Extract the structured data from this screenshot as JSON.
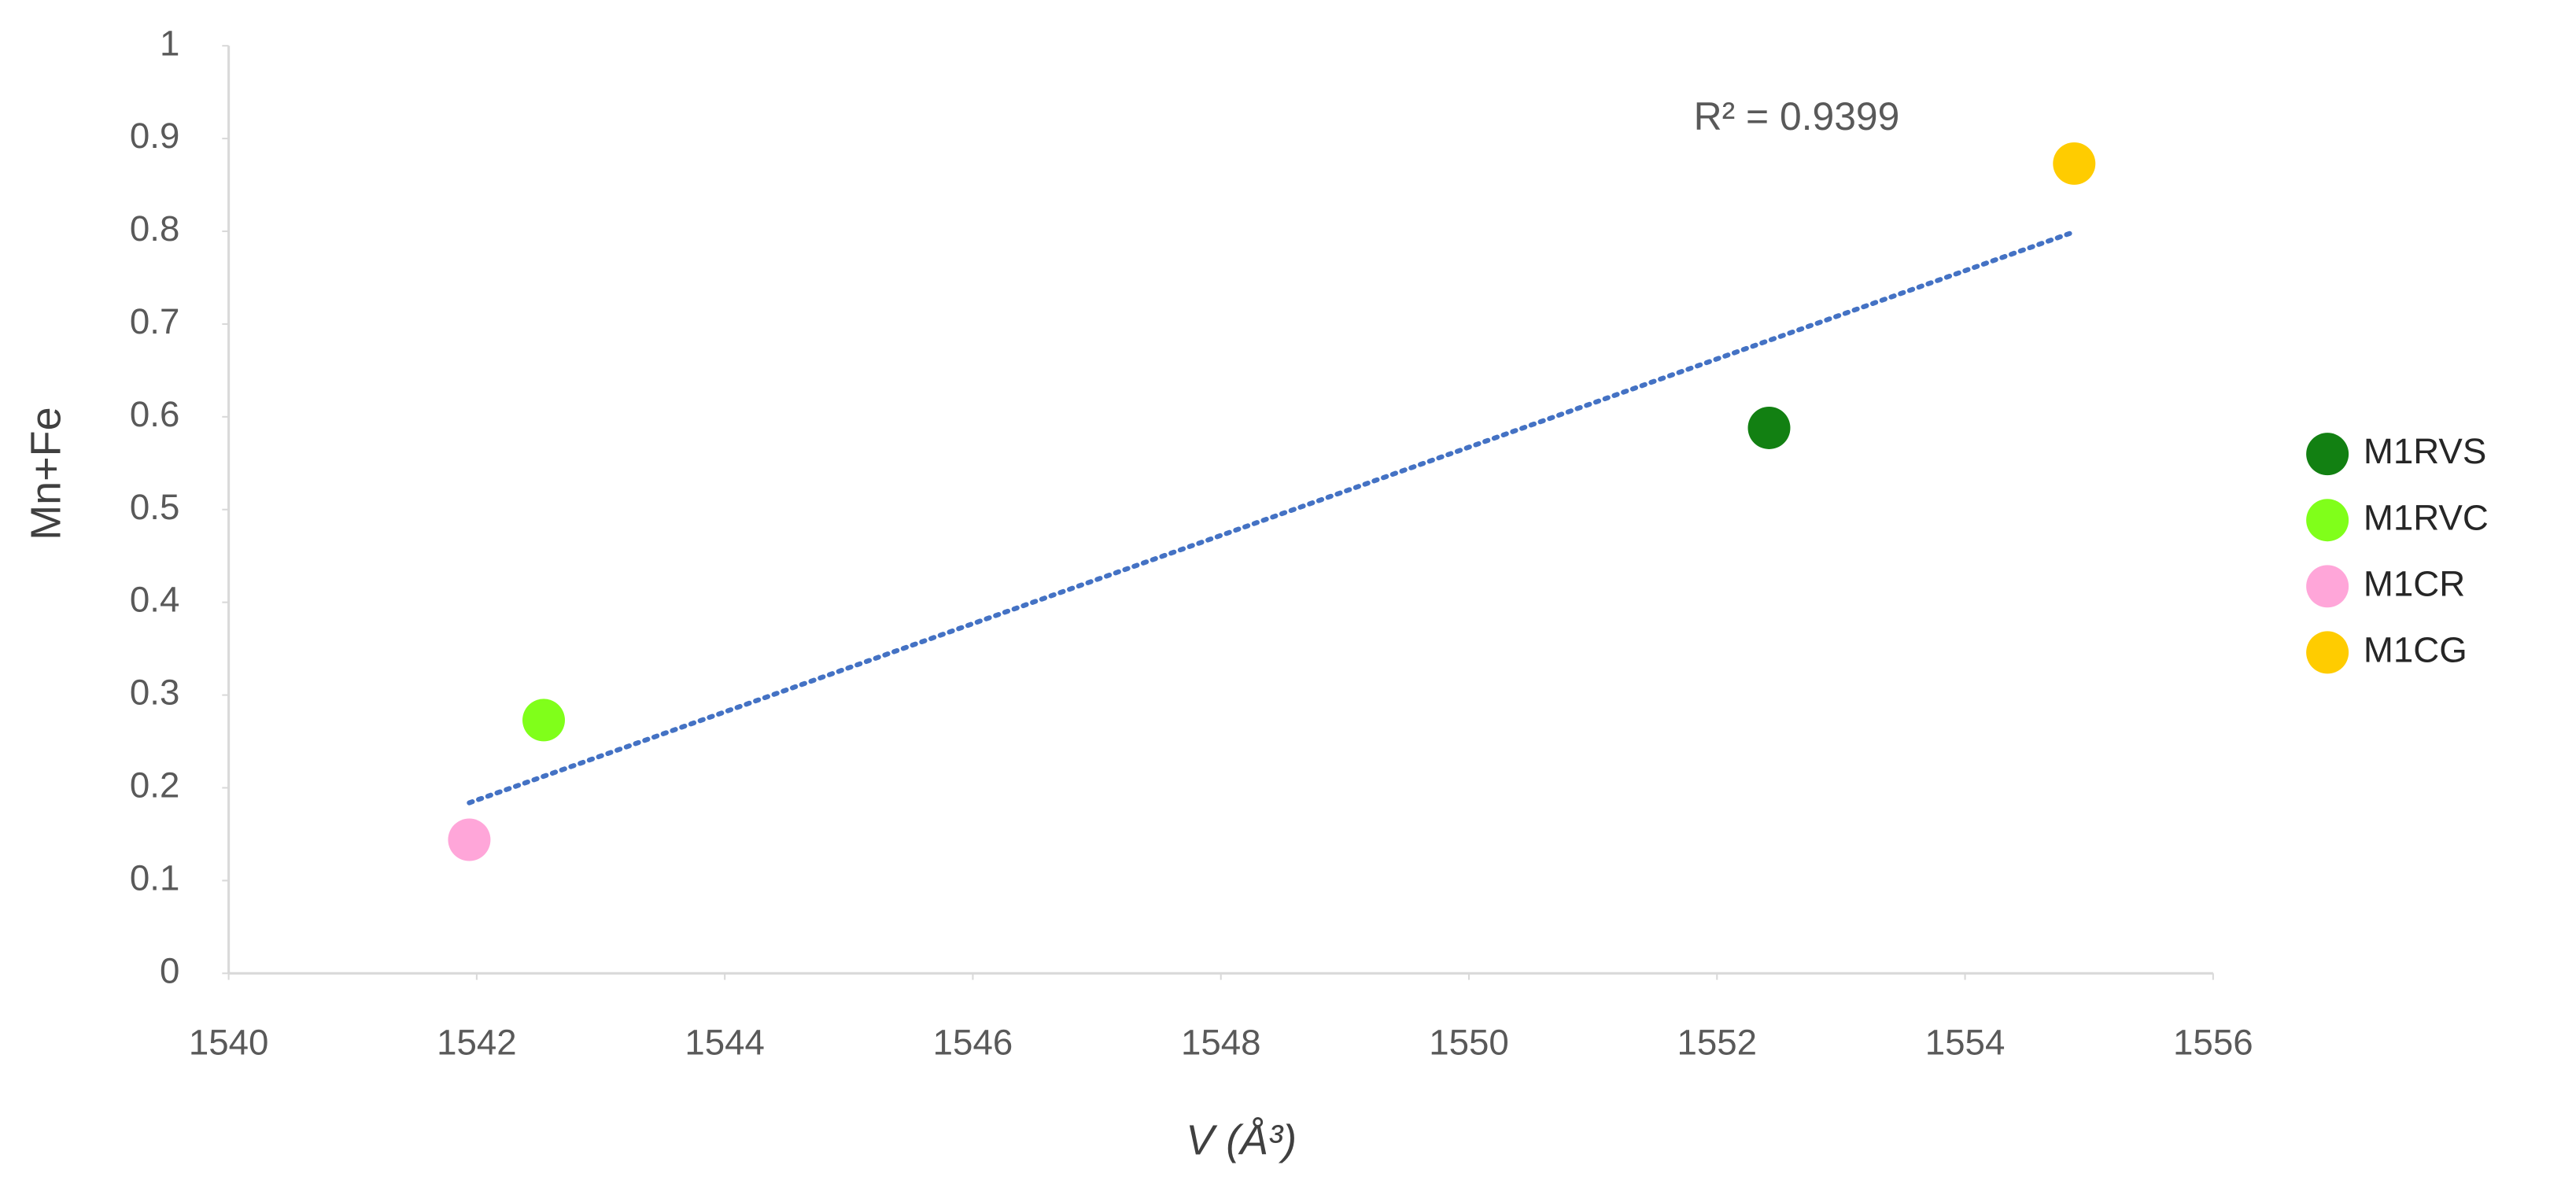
{
  "chart_data": {
    "type": "scatter",
    "xlabel": "V (Å³)",
    "ylabel": "Mn+Fe",
    "xlim": [
      1540,
      1556
    ],
    "xticks": [
      1540,
      1542,
      1544,
      1546,
      1548,
      1550,
      1552,
      1554,
      1556
    ],
    "ylim": [
      0,
      1
    ],
    "yticks": [
      0,
      0.1,
      0.2,
      0.3,
      0.4,
      0.5,
      0.6,
      0.7,
      0.8,
      0.9,
      1
    ],
    "grid": false,
    "legend_position": "right",
    "series": [
      {
        "name": "M1RVS",
        "color": "#128012",
        "x": [
          1552.42
        ],
        "values": [
          0.588
        ]
      },
      {
        "name": "M1RVC",
        "color": "#80ff1a",
        "x": [
          1542.54
        ],
        "values": [
          0.273
        ]
      },
      {
        "name": "M1CR",
        "color": "#ffa6d9",
        "x": [
          1541.94
        ],
        "values": [
          0.144
        ]
      },
      {
        "name": "M1CG",
        "color": "#ffcc00",
        "x": [
          1554.88
        ],
        "values": [
          0.873
        ]
      }
    ],
    "trendline": {
      "type": "linear",
      "color": "#4472c4",
      "annotation": "R² = 0.9399"
    }
  }
}
